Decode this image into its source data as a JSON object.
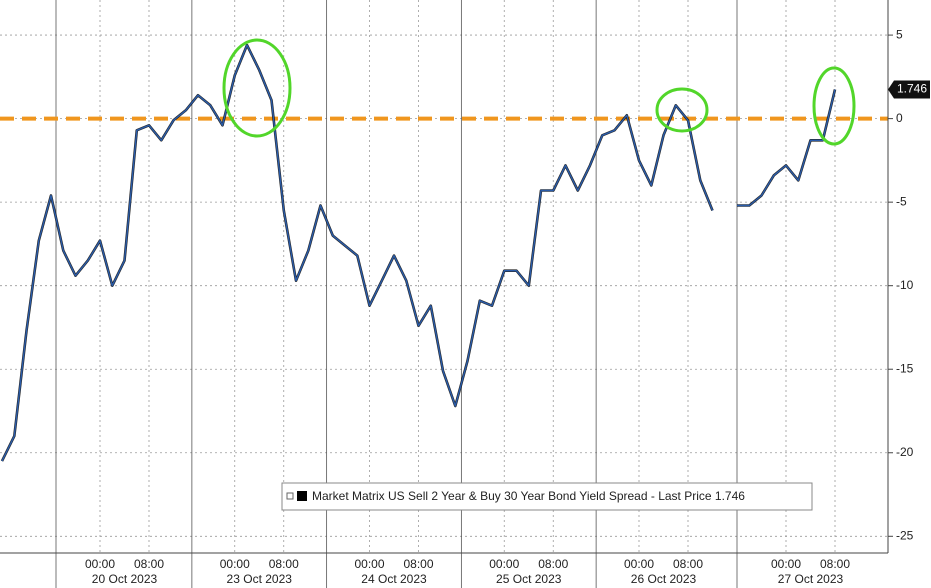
{
  "chart_data": {
    "type": "line",
    "categories": [
      null,
      null,
      null,
      null,
      null,
      null,
      null,
      null,
      "00:00",
      null,
      null,
      null,
      "08:00",
      null,
      null,
      null,
      null,
      null,
      null,
      "00:00",
      null,
      null,
      null,
      "08:00",
      null,
      null,
      null,
      null,
      null,
      null,
      "00:00",
      null,
      null,
      null,
      "08:00",
      null,
      null,
      null,
      null,
      null,
      null,
      "00:00",
      null,
      null,
      null,
      "08:00",
      null,
      null,
      null,
      null,
      null,
      null,
      "00:00",
      null,
      null,
      null,
      "08:00",
      null,
      null,
      null,
      null,
      null,
      null,
      null,
      "00:00",
      null,
      null,
      null,
      "08:00"
    ],
    "dates": [
      "20 Oct 2023",
      "23 Oct 2023",
      "24 Oct 2023",
      "25 Oct 2023",
      "26 Oct 2023",
      "27 Oct 2023"
    ],
    "series": [
      {
        "name": "Market Matrix US Sell 2 Year & Buy 30 Year Bond Yield Spread",
        "legend_suffix": "- Last Price",
        "color": "#2a5caa",
        "values": [
          -20.5,
          -19,
          -12.7,
          -7.3,
          -4.6,
          -7.9,
          -9.4,
          -8.5,
          -7.3,
          -10,
          -8.5,
          -0.7,
          -0.4,
          -1.3,
          -0.1,
          0.5,
          1.4,
          0.8,
          -0.4,
          2.6,
          4.4,
          2.9,
          1.1,
          -5.5,
          -9.7,
          -7.9,
          -5.2,
          -7,
          -7.6,
          -8.2,
          -11.2,
          -9.7,
          -8.2,
          -9.7,
          -12.4,
          -11.2,
          -15.1,
          -17.2,
          -14.5,
          -10.9,
          -11.2,
          -9.1,
          -9.1,
          -10,
          -4.3,
          -4.3,
          -2.8,
          -4.3,
          -2.8,
          -1,
          -0.7,
          0.2,
          -2.5,
          -4,
          -1,
          0.8,
          -0.1,
          -3.7,
          -5.5,
          null,
          -5.2,
          -5.2,
          -4.6,
          -3.4,
          -2.8,
          -3.7,
          -1.3,
          -1.3,
          1.746
        ]
      }
    ],
    "reference_line": {
      "value": 0,
      "color": "#f0961e"
    },
    "ylim": [
      -26,
      7.1
    ],
    "yticks": [
      5,
      0,
      -5,
      -10,
      -15,
      -20,
      -25
    ],
    "grid": true
  }
}
